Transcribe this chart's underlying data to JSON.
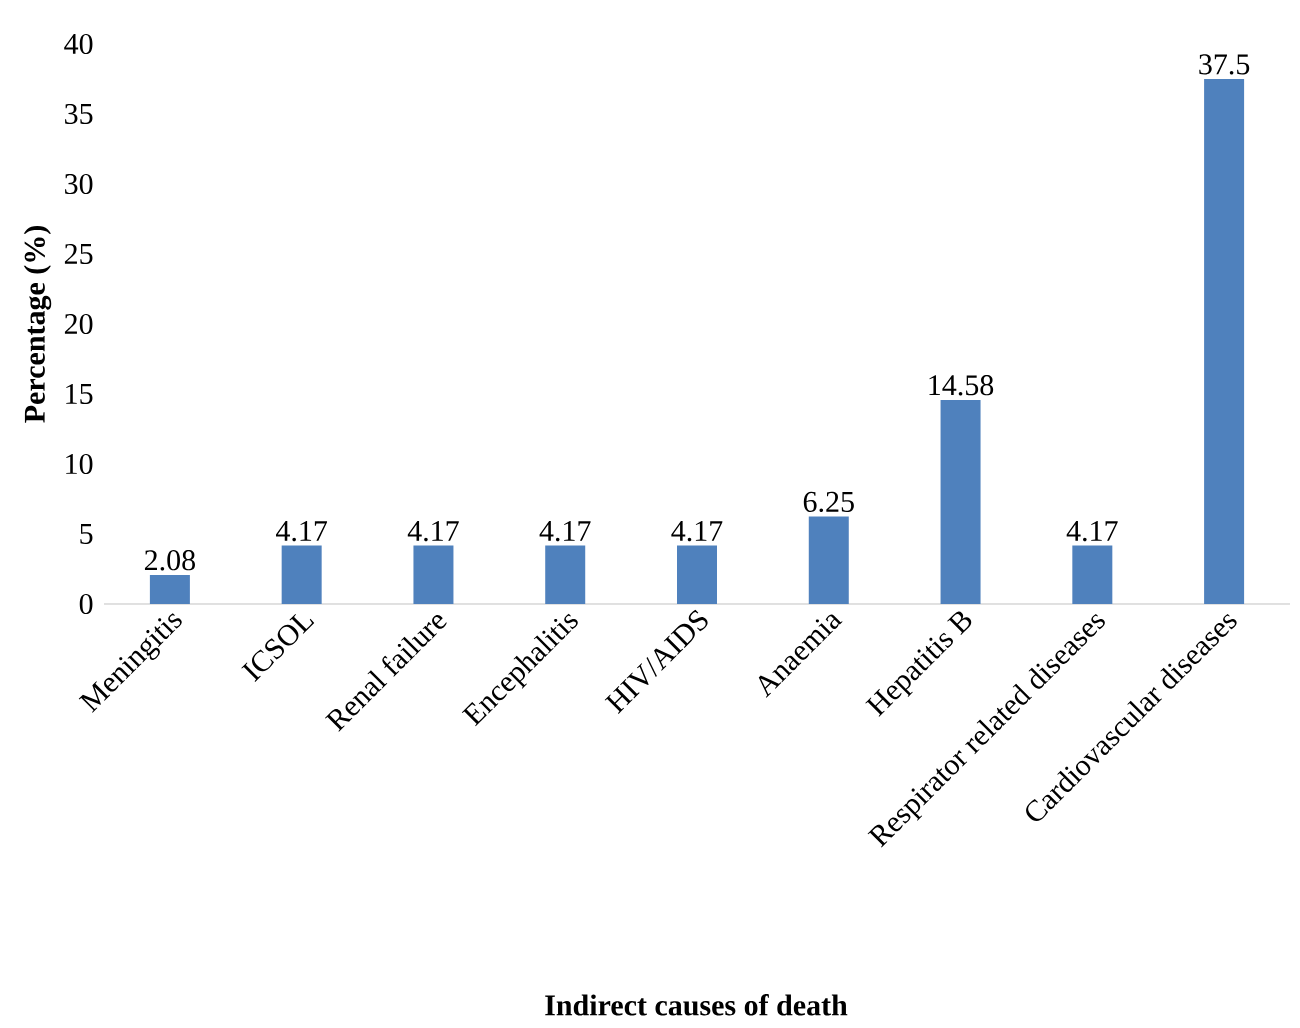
{
  "chart_data": {
    "type": "bar",
    "xlabel": "Indirect causes of death",
    "ylabel": "Percentage (%)",
    "categories": [
      "Meningitis",
      "ICSOL",
      "Renal failure",
      "Encephalitis",
      "HIV/AIDS",
      "Anaemia",
      "Hepatitis B",
      "Respirator related diseases",
      "Cardiovascular diseases"
    ],
    "values": [
      2.08,
      4.17,
      4.17,
      4.17,
      4.17,
      6.25,
      14.58,
      4.17,
      37.5
    ],
    "color": "#4f81bd",
    "ylim": [
      0,
      40
    ],
    "yticks": [
      0,
      5,
      10,
      15,
      20,
      25,
      30,
      35,
      40
    ],
    "data_labels": true
  }
}
